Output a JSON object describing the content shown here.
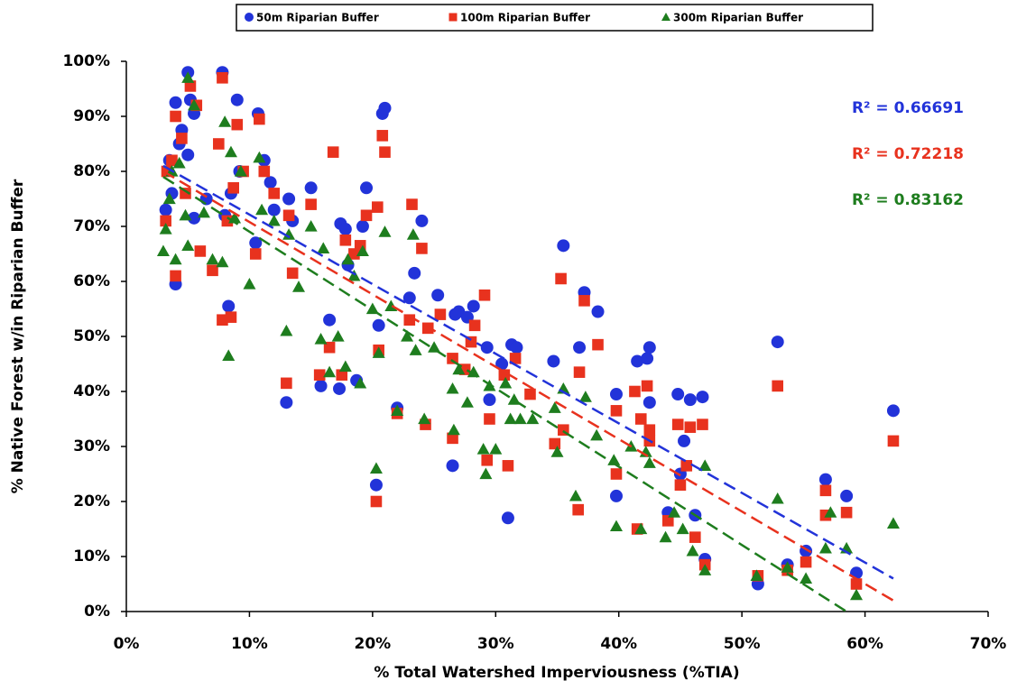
{
  "chart_data": {
    "type": "scatter",
    "x_label": "% Total Watershed Imperviousness (%TIA)",
    "y_label": "% Native Forest w/in Riparian Buffer",
    "xlim": [
      0,
      70
    ],
    "ylim": [
      0,
      100
    ],
    "xticks": [
      {
        "value": 0,
        "label": "0%"
      },
      {
        "value": 10,
        "label": "10%"
      },
      {
        "value": 20,
        "label": "20%"
      },
      {
        "value": 30,
        "label": "30%"
      },
      {
        "value": 40,
        "label": "40%"
      },
      {
        "value": 50,
        "label": "50%"
      },
      {
        "value": 60,
        "label": "60%"
      },
      {
        "value": 70,
        "label": "70%"
      }
    ],
    "yticks": [
      {
        "value": 0,
        "label": "0%"
      },
      {
        "value": 10,
        "label": "10%"
      },
      {
        "value": 20,
        "label": "20%"
      },
      {
        "value": 30,
        "label": "30%"
      },
      {
        "value": 40,
        "label": "40%"
      },
      {
        "value": 50,
        "label": "50%"
      },
      {
        "value": 60,
        "label": "60%"
      },
      {
        "value": 70,
        "label": "70%"
      },
      {
        "value": 80,
        "label": "80%"
      },
      {
        "value": 90,
        "label": "90%"
      },
      {
        "value": 100,
        "label": "100%"
      }
    ],
    "series": [
      {
        "name": "50m Riparian Buffer",
        "color": "#2233d9",
        "marker": "circle",
        "r_squared": "R² = 0.66691",
        "trendline": {
          "x": [
            3,
            62.3
          ],
          "y": [
            81,
            6
          ]
        },
        "x": [
          3.2,
          3.5,
          3.7,
          4,
          4,
          4.5,
          4.3,
          5,
          5,
          5.2,
          5.5,
          5.5,
          6.5,
          7.8,
          8,
          8.3,
          8.5,
          9,
          9.2,
          10.5,
          10.7,
          11.2,
          11.7,
          12,
          13,
          13.2,
          13.5,
          15,
          15.8,
          16.5,
          17.3,
          17.4,
          17.8,
          18,
          18.7,
          19.2,
          19.5,
          20.3,
          20.5,
          20.8,
          21,
          22,
          23,
          23.4,
          24,
          25.3,
          26.5,
          26.7,
          27,
          27.7,
          28.2,
          29.3,
          29.5,
          30.5,
          31,
          31.3,
          31.7,
          34.7,
          35.5,
          36.8,
          37.2,
          38.3,
          39.8,
          39.8,
          41.5,
          42.3,
          42.5,
          42.5,
          44,
          44.8,
          45,
          45.3,
          45.8,
          46.2,
          46.8,
          47,
          51.3,
          52.9,
          53.7,
          55.2,
          56.8,
          58.5,
          59.3,
          62.3
        ],
        "values": [
          73,
          82,
          76,
          59.5,
          92.5,
          87.5,
          85,
          98,
          83,
          93,
          90.5,
          71.5,
          75,
          98,
          72,
          55.5,
          76,
          93,
          80,
          67,
          90.5,
          82,
          78,
          73,
          38,
          75,
          71,
          77,
          41,
          53,
          40.5,
          70.5,
          69.5,
          63,
          42,
          70,
          77,
          23,
          52,
          90.5,
          91.5,
          37,
          57,
          61.5,
          71,
          57.5,
          26.5,
          54,
          54.5,
          53.5,
          55.5,
          48,
          38.5,
          45,
          17,
          48.5,
          48,
          45.5,
          66.5,
          48,
          58,
          54.5,
          39.5,
          21,
          45.5,
          46,
          48,
          38,
          18,
          39.5,
          25,
          31,
          38.5,
          17.5,
          39,
          9.5,
          5,
          49,
          8.5,
          11,
          24,
          21,
          7,
          36.5
        ]
      },
      {
        "name": "100m Riparian Buffer",
        "color": "#e8321e",
        "marker": "square",
        "r_squared": "R² = 0.72218",
        "trendline": {
          "x": [
            3,
            62.3
          ],
          "y": [
            80,
            2
          ]
        },
        "x": [
          3.2,
          3.3,
          3.7,
          4,
          4,
          4.5,
          4.8,
          5.2,
          5.7,
          6,
          7,
          7.5,
          7.8,
          7.8,
          8.2,
          8.5,
          8.7,
          9,
          9.5,
          10.5,
          10.8,
          11.2,
          12,
          13,
          13.2,
          13.5,
          15,
          15.7,
          16.5,
          16.8,
          17.5,
          17.8,
          18.5,
          19,
          19.5,
          20.3,
          20.4,
          20.5,
          20.8,
          21,
          22,
          23,
          23.2,
          24,
          24.3,
          24.5,
          25.5,
          26.5,
          26.5,
          27.5,
          28,
          28.3,
          29.1,
          29.3,
          29.5,
          30.7,
          31,
          31.6,
          32.8,
          34.8,
          35.3,
          35.5,
          36.7,
          36.8,
          37.2,
          38.3,
          39.8,
          39.8,
          41.3,
          41.5,
          41.8,
          42.3,
          42.5,
          42.5,
          44,
          44.8,
          45,
          45.5,
          45.8,
          46.2,
          46.8,
          47,
          51.3,
          52.9,
          53.7,
          55.2,
          56.8,
          56.8,
          58.5,
          59.3,
          62.3
        ],
        "values": [
          71,
          80,
          82,
          61,
          90,
          86,
          76,
          95.5,
          92,
          65.5,
          62,
          85,
          53,
          97,
          71,
          53.5,
          77,
          88.5,
          80,
          65,
          89.5,
          80,
          76,
          41.5,
          72,
          61.5,
          74,
          43,
          48,
          83.5,
          43,
          67.5,
          65,
          66.5,
          72,
          20,
          73.5,
          47.5,
          86.5,
          83.5,
          36,
          53,
          74,
          66,
          34,
          51.5,
          54,
          46,
          31.5,
          44,
          49,
          52,
          57.5,
          27.5,
          35,
          43,
          26.5,
          46,
          39.5,
          30.5,
          60.5,
          33,
          18.5,
          43.5,
          56.5,
          48.5,
          25,
          36.5,
          40,
          15,
          35,
          41,
          31,
          33,
          16.5,
          34,
          23,
          26.5,
          33.5,
          13.5,
          34,
          8.5,
          6.5,
          41,
          7.5,
          9,
          17.5,
          22,
          18,
          5,
          31
        ]
      },
      {
        "name": "300m Riparian Buffer",
        "color": "#1e7d1e",
        "marker": "triangle",
        "r_squared": "R² = 0.83162",
        "trendline": {
          "x": [
            3,
            58.5
          ],
          "y": [
            79,
            0
          ]
        },
        "x": [
          3,
          3.2,
          3.5,
          3.7,
          4,
          4.3,
          4.8,
          5,
          5,
          5.5,
          6.3,
          7,
          7.8,
          8,
          8.3,
          8.5,
          8.8,
          9.3,
          10,
          10.8,
          11,
          12,
          13,
          13.2,
          14,
          15,
          15.8,
          16,
          16.5,
          17.2,
          17.8,
          18,
          18.5,
          19,
          19.2,
          20,
          20.3,
          20.5,
          21,
          21.5,
          22,
          22.8,
          23.3,
          23.5,
          24.2,
          25,
          26.5,
          26.6,
          27,
          27.7,
          28.2,
          29,
          29.2,
          29.5,
          30,
          30.8,
          31.2,
          31.5,
          32,
          33,
          34.8,
          35,
          35.5,
          36.5,
          37.3,
          38.2,
          39.6,
          39.8,
          41,
          41.8,
          42.2,
          42.5,
          43.8,
          44.5,
          45.2,
          46,
          47,
          47,
          51.2,
          52.9,
          53.7,
          55.2,
          56.8,
          57.2,
          58.5,
          59.3,
          62.3
        ],
        "values": [
          65.5,
          69.5,
          75,
          80,
          64,
          81.5,
          72,
          66.5,
          97,
          92,
          72.5,
          64,
          63.5,
          89,
          46.5,
          83.5,
          71.5,
          80,
          59.5,
          82.5,
          73,
          71,
          51,
          68.5,
          59,
          70,
          49.5,
          66,
          43.5,
          50,
          44.5,
          64,
          61,
          41.5,
          65.5,
          55,
          26,
          47,
          69,
          55.5,
          36.5,
          50,
          68.5,
          47.5,
          35,
          48,
          40.5,
          33,
          44,
          38,
          43.5,
          29.5,
          25,
          41,
          29.5,
          41.5,
          35,
          38.5,
          35,
          35,
          37,
          29,
          40.5,
          21,
          39,
          32,
          27.5,
          15.5,
          30,
          15,
          29,
          27,
          13.5,
          18,
          15,
          11,
          26.5,
          7.5,
          6.5,
          20.5,
          8,
          6,
          11.5,
          18,
          11.5,
          3,
          16
        ]
      }
    ]
  }
}
